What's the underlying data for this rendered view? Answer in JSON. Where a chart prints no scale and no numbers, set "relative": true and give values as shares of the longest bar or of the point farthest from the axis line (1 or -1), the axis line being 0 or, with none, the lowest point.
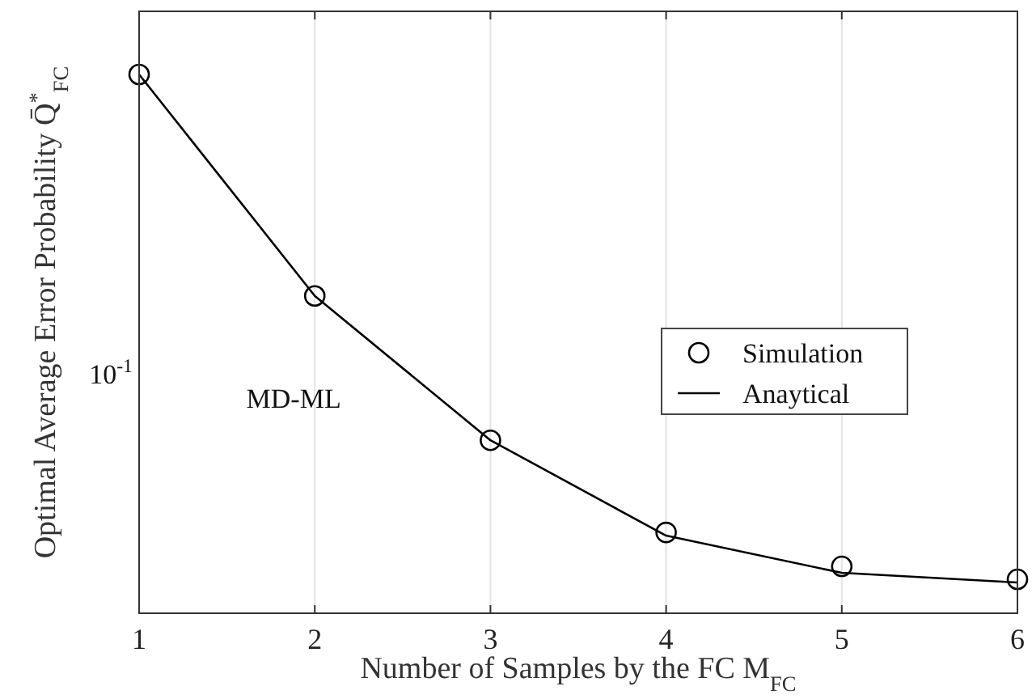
{
  "chart_data": {
    "type": "line",
    "xlabel": "Number of Samples by the FC M$_{FC}$",
    "ylabel": "Optimal Average Error Probability Q̄$^{*}$$_{FC}$",
    "x": [
      1,
      2,
      3,
      4,
      5,
      6
    ],
    "series": [
      {
        "name": "Simulation",
        "type": "scatter",
        "marker": "circle",
        "color": "#000000",
        "values": [
          1,
          0.589,
          0.321,
          0.15,
          0.087,
          0.063
        ]
      },
      {
        "name": "Anaytical",
        "marker": "none",
        "line_style": "solid",
        "color": "#000000",
        "values": [
          1,
          0.589,
          0.321,
          0.144,
          0.075,
          0.057
        ]
      }
    ],
    "annotations": [
      "MD-ML",
      "10$^{-1}$"
    ],
    "relative": true,
    "xlim": [
      1,
      6
    ],
    "xticks": [
      1,
      2,
      3,
      4,
      5,
      6
    ],
    "grid": "x",
    "legend": "right"
  }
}
